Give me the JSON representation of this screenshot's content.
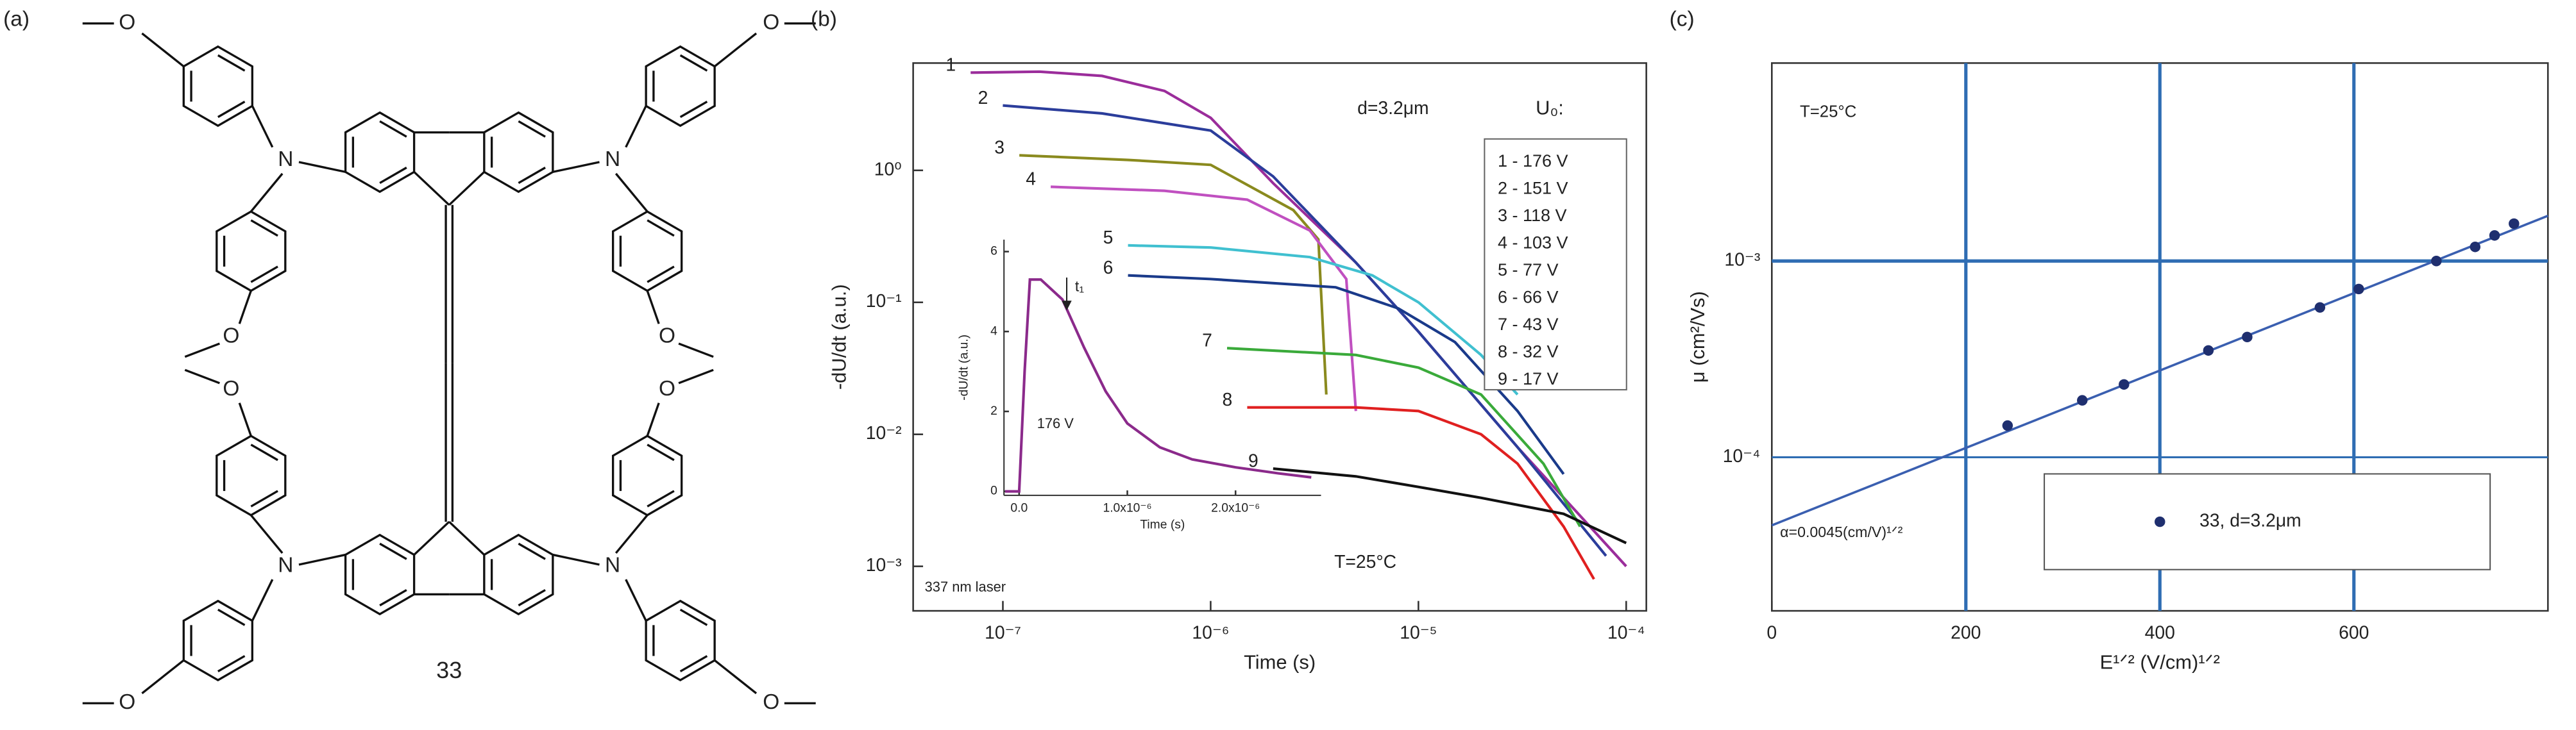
{
  "panel_a": {
    "label": "(a)",
    "compound": "33",
    "atoms": [
      "O",
      "O",
      "N",
      "O",
      "O",
      "N",
      "O",
      "O",
      "N",
      "O",
      "O",
      "N"
    ]
  },
  "chart_data": [
    {
      "type": "line",
      "panel_label": "(b)",
      "xlabel": "Time (s)",
      "ylabel": "-dU/dt (a.u.)",
      "xscale": "log",
      "yscale": "log",
      "xlim": [
        3.7e-08,
        0.000125
      ],
      "ylim": [
        0.00046,
        6.5
      ],
      "xticks": [
        {
          "value": 1e-07,
          "label": "10⁻⁷"
        },
        {
          "value": 1e-06,
          "label": "10⁻⁶"
        },
        {
          "value": 1e-05,
          "label": "10⁻⁵"
        },
        {
          "value": 0.0001,
          "label": "10⁻⁴"
        }
      ],
      "yticks": [
        {
          "value": 0.001,
          "label": "10⁻³"
        },
        {
          "value": 0.01,
          "label": "10⁻²"
        },
        {
          "value": 0.1,
          "label": "10⁻¹"
        },
        {
          "value": 1,
          "label": "10⁰"
        }
      ],
      "legend_title": "U₀:",
      "annotations": [
        "d=3.2μm",
        "T=25°C",
        "337 nm laser"
      ],
      "series": [
        {
          "name": "1 - 176 V",
          "label": "1",
          "color": "#9b2d9b",
          "x": [
            7e-08,
            1.5e-07,
            3e-07,
            6e-07,
            1e-06,
            2e-06,
            5e-06,
            1e-05,
            3e-05,
            0.0001
          ],
          "values": [
            5.5,
            5.6,
            5.2,
            4,
            2.5,
            0.8,
            0.2,
            0.06,
            0.008,
            0.001
          ]
        },
        {
          "name": "2 - 151 V",
          "label": "2",
          "color": "#2b3d9b",
          "x": [
            1e-07,
            3e-07,
            1e-06,
            2e-06,
            5e-06,
            1e-05,
            3e-05,
            8e-05
          ],
          "values": [
            3.1,
            2.7,
            2,
            0.9,
            0.2,
            0.06,
            0.008,
            0.0012
          ]
        },
        {
          "name": "3 - 118 V",
          "label": "3",
          "color": "#8a8a1e",
          "x": [
            1.2e-07,
            4e-07,
            1e-06,
            2.5e-06,
            3.3e-06,
            3.6e-06
          ],
          "values": [
            1.3,
            1.2,
            1.1,
            0.5,
            0.3,
            0.02
          ]
        },
        {
          "name": "4 - 103 V",
          "label": "4",
          "color": "#c050c0",
          "x": [
            1.7e-07,
            6e-07,
            1.5e-06,
            3e-06,
            4.5e-06,
            5e-06
          ],
          "values": [
            0.75,
            0.7,
            0.6,
            0.35,
            0.15,
            0.015
          ]
        },
        {
          "name": "5 - 77 V",
          "label": "5",
          "color": "#40c0d0",
          "x": [
            4e-07,
            1e-06,
            3e-06,
            6e-06,
            1e-05,
            2e-05,
            3e-05
          ],
          "values": [
            0.27,
            0.26,
            0.22,
            0.16,
            0.1,
            0.04,
            0.02
          ]
        },
        {
          "name": "6 - 66 V",
          "label": "6",
          "color": "#1a3a8a",
          "x": [
            4e-07,
            1e-06,
            4e-06,
            8e-06,
            1.5e-05,
            3e-05,
            5e-05
          ],
          "values": [
            0.16,
            0.15,
            0.13,
            0.09,
            0.05,
            0.015,
            0.005
          ]
        },
        {
          "name": "7 - 43 V",
          "label": "7",
          "color": "#3aaa3a",
          "x": [
            1.2e-06,
            5e-06,
            1e-05,
            2e-05,
            4e-05,
            6e-05
          ],
          "values": [
            0.045,
            0.04,
            0.032,
            0.02,
            0.006,
            0.002
          ]
        },
        {
          "name": "8 - 32 V",
          "label": "8",
          "color": "#e02020",
          "x": [
            1.5e-06,
            5e-06,
            1e-05,
            2e-05,
            3e-05,
            5e-05,
            7e-05
          ],
          "values": [
            0.016,
            0.016,
            0.015,
            0.01,
            0.006,
            0.002,
            0.0008
          ]
        },
        {
          "name": "9 - 17 V",
          "label": "9",
          "color": "#111111",
          "x": [
            2e-06,
            5e-06,
            1e-05,
            2e-05,
            5e-05,
            0.0001
          ],
          "values": [
            0.0055,
            0.0048,
            0.004,
            0.0033,
            0.0025,
            0.0015
          ]
        }
      ]
    },
    {
      "type": "line",
      "xlabel": "Time (s)",
      "ylabel": "-dU/dt (a.u.)",
      "xlim": [
        -1.4e-07,
        2.79e-06
      ],
      "ylim": [
        -0.1,
        6.3
      ],
      "xticks": [
        {
          "value": 0,
          "label": "0.0"
        },
        {
          "value": 1e-06,
          "label": "1.0x10⁻⁶"
        },
        {
          "value": 2e-06,
          "label": "2.0x10⁻⁶"
        }
      ],
      "yticks": [
        0,
        2,
        4,
        6
      ],
      "annotations": [
        "176 V",
        "t₁"
      ],
      "series": [
        {
          "color": "#8b2a8b",
          "x": [
            -1.3e-07,
            0,
            5e-08,
            1e-07,
            2e-07,
            4e-07,
            6e-07,
            8e-07,
            1e-06,
            1.3e-06,
            1.6e-06,
            2e-06,
            2.4e-06,
            2.7e-06
          ],
          "values": [
            0,
            0,
            3,
            5.3,
            5.3,
            4.8,
            3.6,
            2.5,
            1.7,
            1.1,
            0.8,
            0.6,
            0.45,
            0.35
          ]
        }
      ]
    },
    {
      "type": "scatter",
      "panel_label": "(c)",
      "xlabel": "E¹ᐟ² (V/cm)¹ᐟ²",
      "ylabel": "μ (cm²/Vs)",
      "yscale": "log",
      "xlim": [
        0,
        800
      ],
      "ylim": [
        1.65e-05,
        0.0102
      ],
      "xticks": [
        0,
        200,
        400,
        600
      ],
      "yticks": [
        {
          "value": 0.0001,
          "label": "10⁻⁴"
        },
        {
          "value": 0.001,
          "label": "10⁻³"
        }
      ],
      "grid": true,
      "grid_color": "#2f6db3",
      "annotations": [
        "T=25°C",
        "α=0.0045(cm/V)¹ᐟ²"
      ],
      "x": [
        243,
        320,
        363,
        450,
        490,
        565,
        605,
        685,
        725,
        745,
        765
      ],
      "series": [
        {
          "name": "33, d=3.2μm",
          "color": "#1f2f6f",
          "values": [
            0.000145,
            0.000195,
            0.000235,
            0.00035,
            0.00041,
            0.00058,
            0.00072,
            0.001,
            0.00118,
            0.00135,
            0.00155
          ]
        }
      ],
      "fit": {
        "x": [
          0,
          800
        ],
        "values": [
          4.5e-05,
          0.0017
        ],
        "color": "#3a5fb0"
      }
    }
  ]
}
